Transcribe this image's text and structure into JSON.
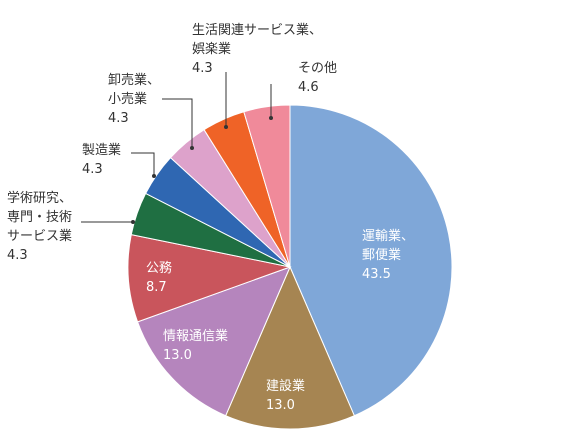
{
  "chart_data": {
    "type": "pie",
    "title": "",
    "start_angle_deg": 0,
    "direction": "clockwise",
    "slices": [
      {
        "name": "運輸業、郵便業",
        "lines": [
          "運輸業、",
          "郵便業"
        ],
        "value_label": "43.5",
        "value": 43.5,
        "color": "#7fa7d8",
        "label_position": "inside"
      },
      {
        "name": "建設業",
        "lines": [
          "建設業"
        ],
        "value_label": "13.0",
        "value": 13.0,
        "color": "#a68552",
        "label_position": "inside"
      },
      {
        "name": "情報通信業",
        "lines": [
          "情報通信業"
        ],
        "value_label": "13.0",
        "value": 13.0,
        "color": "#b585bd",
        "label_position": "inside"
      },
      {
        "name": "公務",
        "lines": [
          "公務"
        ],
        "value_label": "8.7",
        "value": 8.7,
        "color": "#c9555c",
        "label_position": "inside"
      },
      {
        "name": "学術研究、専門・技術サービス業",
        "lines": [
          "学術研究、",
          "専門・技術",
          "サービス業"
        ],
        "value_label": "4.3",
        "value": 4.3,
        "color": "#1f6f42",
        "label_position": "outside"
      },
      {
        "name": "製造業",
        "lines": [
          "製造業"
        ],
        "value_label": "4.3",
        "value": 4.3,
        "color": "#2f67b2",
        "label_position": "outside"
      },
      {
        "name": "卸売業、小売業",
        "lines": [
          "卸売業、",
          "小売業"
        ],
        "value_label": "4.3",
        "value": 4.3,
        "color": "#dda2cb",
        "label_position": "outside"
      },
      {
        "name": "生活関連サービス業、娯楽業",
        "lines": [
          "生活関連サービス業、",
          "娯楽業"
        ],
        "value_label": "4.3",
        "value": 4.3,
        "color": "#ef6327",
        "label_position": "outside"
      },
      {
        "name": "その他",
        "lines": [
          "その他"
        ],
        "value_label": "4.6",
        "value": 4.6,
        "color": "#f08a9a",
        "label_position": "outside"
      }
    ]
  }
}
